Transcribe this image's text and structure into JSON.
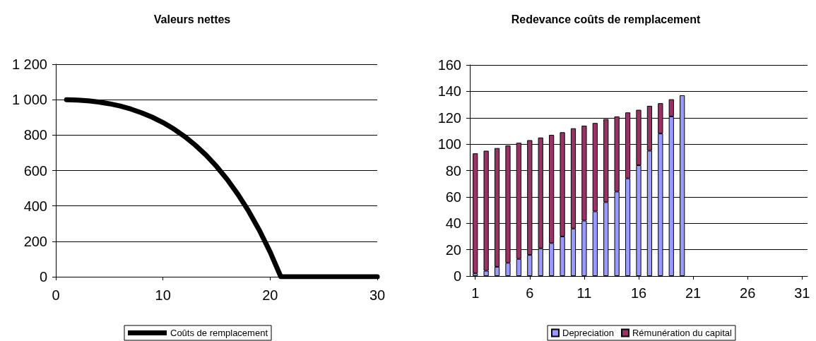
{
  "chart_data": [
    {
      "type": "line",
      "title": "Valeurs nettes",
      "x": [
        1,
        2,
        3,
        4,
        5,
        6,
        7,
        8,
        9,
        10,
        11,
        12,
        13,
        14,
        15,
        16,
        17,
        18,
        19,
        20,
        21,
        22,
        23,
        24,
        25,
        26,
        27,
        28,
        29,
        30
      ],
      "series": [
        {
          "name": "Coûts de remplacement",
          "color": "#000000",
          "values": [
            1000,
            998,
            994,
            987,
            977,
            964,
            947,
            926,
            901,
            871,
            835,
            793,
            744,
            688,
            623,
            549,
            465,
            370,
            262,
            140,
            0,
            0,
            0,
            0,
            0,
            0,
            0,
            0,
            0,
            0
          ]
        }
      ],
      "xlim": [
        0,
        30
      ],
      "xticks": [
        0,
        10,
        20,
        30
      ],
      "ylim": [
        0,
        1200
      ],
      "yticks": [
        0,
        200,
        400,
        600,
        800,
        {
          "value": 1000,
          "label": "1 000"
        },
        {
          "value": 1200,
          "label": "1 200"
        }
      ],
      "grid": "y",
      "legend": "bottom",
      "marker": "none",
      "line_style": "solid"
    },
    {
      "type": "bar",
      "title": "Redevance coûts de remplacement",
      "x": [
        1,
        2,
        3,
        4,
        5,
        6,
        7,
        8,
        9,
        10,
        11,
        12,
        13,
        14,
        15,
        16,
        17,
        18,
        19,
        20
      ],
      "series": [
        {
          "name": "Depreciation",
          "color": "#9999ff",
          "values": [
            2,
            4,
            7,
            10,
            13,
            16,
            21,
            25,
            30,
            36,
            42,
            49,
            56,
            64,
            74,
            84,
            95,
            108,
            121,
            137
          ]
        },
        {
          "name": "Rémunération du capital",
          "color": "#993366",
          "values": [
            91,
            91,
            90,
            89,
            88,
            87,
            84,
            82,
            79,
            76,
            72,
            67,
            63,
            57,
            50,
            42,
            34,
            23,
            13,
            null
          ]
        }
      ],
      "stacked": true,
      "xlim": [
        0.5,
        31.5
      ],
      "xticks": [
        1,
        6,
        11,
        16,
        21,
        26,
        31
      ],
      "ylim": [
        0,
        160
      ],
      "yticks": [
        0,
        20,
        40,
        60,
        80,
        100,
        120,
        140,
        160
      ],
      "grid": "y",
      "legend": "bottom"
    }
  ]
}
